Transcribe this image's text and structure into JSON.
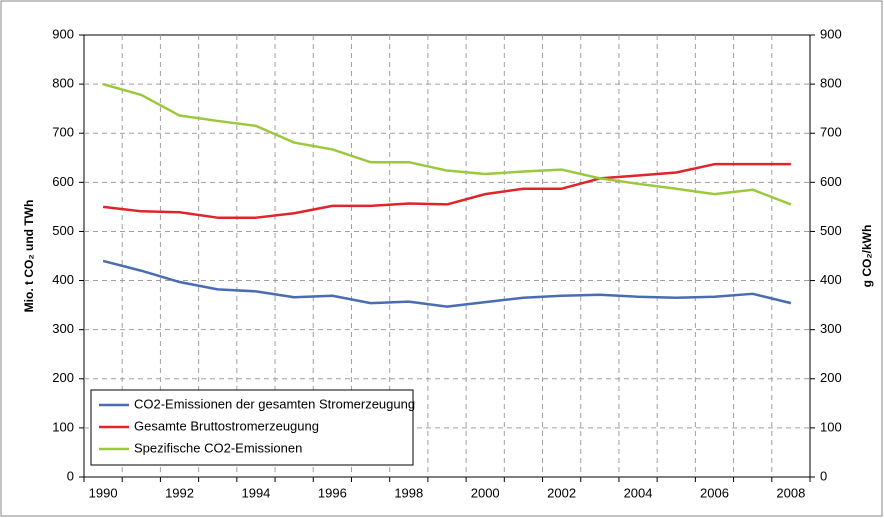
{
  "chart_data": {
    "type": "line",
    "y_label": "Mio. t CO₂ und TWh",
    "y2_label": "g CO₂/kWh",
    "categories": [
      "1990",
      null,
      "1992",
      null,
      "1994",
      null,
      "1996",
      null,
      "1998",
      null,
      "2000",
      null,
      "2002",
      null,
      "2004",
      null,
      "2006",
      null,
      "2008"
    ],
    "ylim": [
      0,
      900
    ],
    "yticks": [
      0,
      100,
      200,
      300,
      400,
      500,
      600,
      700,
      800,
      900
    ],
    "y2lim": [
      0,
      900
    ],
    "y2ticks": [
      0,
      100,
      200,
      300,
      400,
      500,
      600,
      700,
      800,
      900
    ],
    "grid": true,
    "legend": "lower left",
    "series": [
      {
        "name": "CO2-Emissionen der gesamten Stromerzeugung",
        "color": "#4a6cb3",
        "values": [
          440,
          420,
          397,
          382,
          378,
          366,
          369,
          354,
          357,
          347,
          356,
          365,
          369,
          371,
          367,
          365,
          367,
          373,
          354
        ]
      },
      {
        "name": "Gesamte Bruttostromerzeugung",
        "color": "#e0242b",
        "values": [
          550,
          541,
          539,
          528,
          528,
          537,
          552,
          552,
          557,
          555,
          576,
          587,
          587,
          608,
          614,
          620,
          637,
          637,
          637
        ]
      },
      {
        "name": "Spezifische CO2-Emissionen",
        "color": "#9bc93e",
        "axis": "y2",
        "values": [
          800,
          778,
          736,
          725,
          715,
          681,
          667,
          641,
          641,
          624,
          617,
          622,
          626,
          608,
          597,
          587,
          576,
          585,
          555
        ]
      }
    ]
  }
}
